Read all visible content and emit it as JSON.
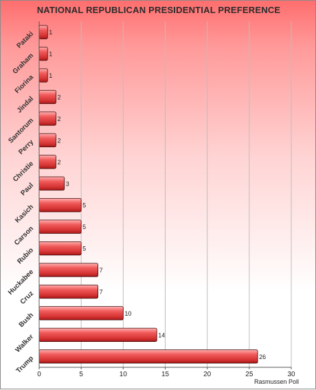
{
  "title": "NATIONAL REPUBLICAN PRESIDENTIAL PREFERENCE",
  "source": "Rasmussen Poll",
  "colors": {
    "bar_light": "#ffb0b0",
    "bar_mid": "#ee4040",
    "bar_dark": "#a81818",
    "grid": "#bdbdbd",
    "text": "#222222"
  },
  "chart_data": {
    "type": "bar",
    "orientation": "horizontal",
    "title": "NATIONAL REPUBLICAN PRESIDENTIAL PREFERENCE",
    "categories": [
      "Pataki",
      "Graham",
      "Fiorina",
      "Jindal",
      "Santorum",
      "Perry",
      "Christie",
      "Paul",
      "Kasich",
      "Carson",
      "Rubio",
      "Huckabee",
      "Cruz",
      "Bush",
      "Walker",
      "Trump"
    ],
    "values": [
      1,
      1,
      1,
      2,
      2,
      2,
      2,
      3,
      5,
      5,
      5,
      7,
      7,
      10,
      14,
      26
    ],
    "data_labels": [
      "1",
      "1",
      "1",
      "2",
      "2",
      "2",
      "2",
      "3",
      "5",
      "5",
      "5",
      "7",
      "7",
      "10",
      "14",
      "26"
    ],
    "xlim": [
      0,
      30
    ],
    "xticks": [
      0,
      5,
      10,
      15,
      20,
      25,
      30
    ],
    "xtick_labels": [
      "0",
      "5",
      "10",
      "15",
      "20",
      "25",
      "30"
    ],
    "xlabel": "",
    "ylabel": "",
    "grid": "vertical",
    "legend": "none"
  }
}
